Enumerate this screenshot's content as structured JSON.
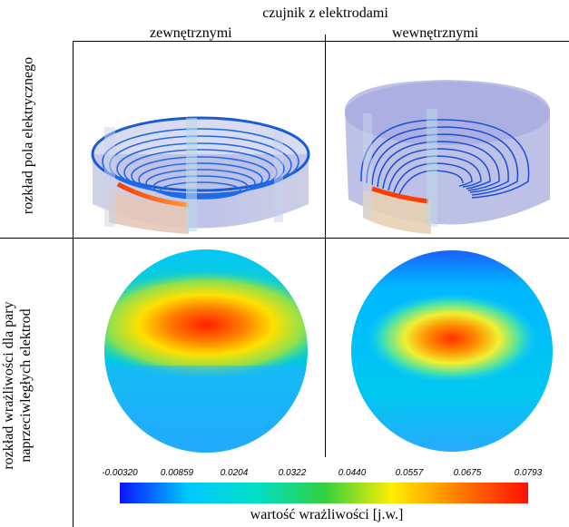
{
  "header": {
    "group_title": "czujnik z elektrodami",
    "col_left": "zewnętrznymi",
    "col_right": "wewnętrznymi"
  },
  "rows": {
    "top_label": "rozkład pola elektrycznego",
    "bottom_label_line1": "rozkład wrażliwości dla pary",
    "bottom_label_line2": "naprzeciwległych elektrod"
  },
  "colorbar": {
    "ticks": [
      "-0.00320",
      "0.00859",
      "0.0204",
      "0.0322",
      "0.0440",
      "0.0557",
      "0.0675",
      "0.0793"
    ],
    "label": "wartość wrażliwości [j.w.]",
    "colors": [
      "#0a14ff",
      "#00c8ff",
      "#00e0c8",
      "#30d040",
      "#ffee00",
      "#ff7a00",
      "#ff1000"
    ]
  }
}
